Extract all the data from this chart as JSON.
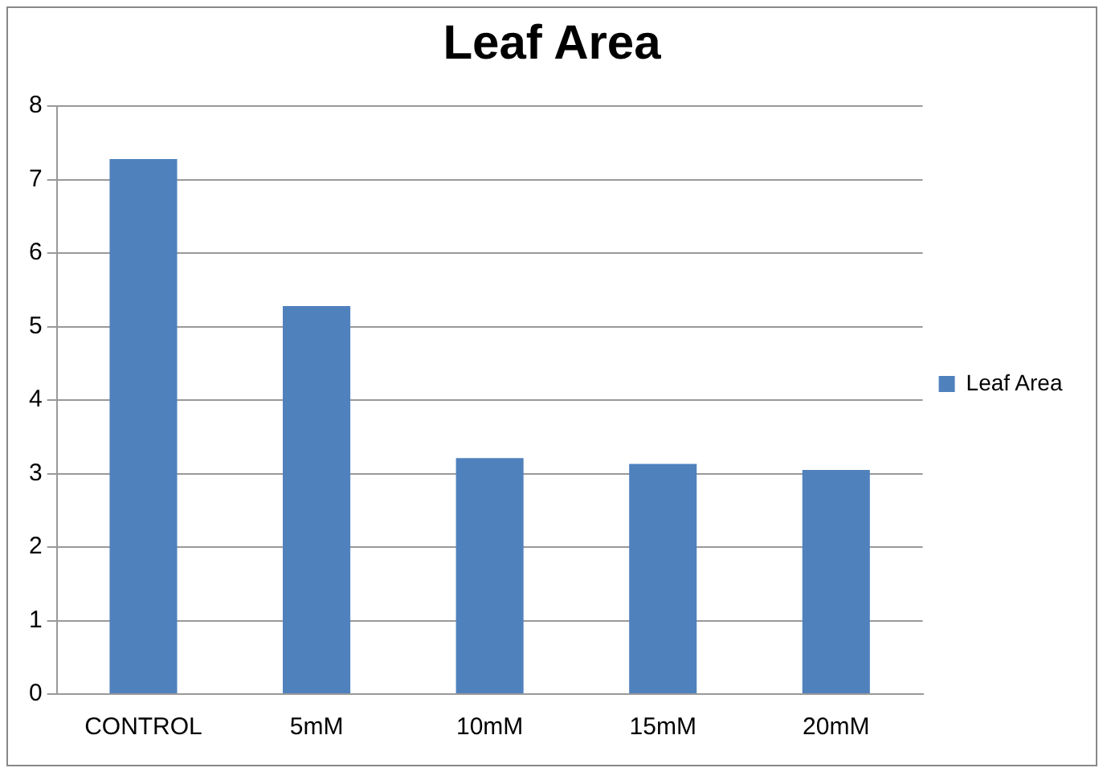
{
  "chart_data": {
    "type": "bar",
    "title": "Leaf Area",
    "categories": [
      "CONTROL",
      "5mM",
      "10mM",
      "15mM",
      "20mM"
    ],
    "series": [
      {
        "name": "Leaf Area",
        "color": "#4f81bd",
        "values": [
          7.28,
          5.28,
          3.21,
          3.13,
          3.05
        ]
      }
    ],
    "ylim": [
      0,
      8
    ],
    "yticks": [
      0,
      1,
      2,
      3,
      4,
      5,
      6,
      7,
      8
    ],
    "grid": "y",
    "legend": "right"
  }
}
